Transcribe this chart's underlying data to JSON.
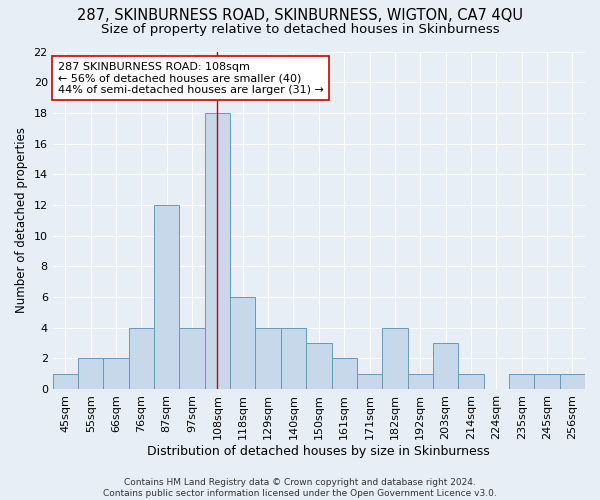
{
  "title1": "287, SKINBURNESS ROAD, SKINBURNESS, WIGTON, CA7 4QU",
  "title2": "Size of property relative to detached houses in Skinburness",
  "xlabel": "Distribution of detached houses by size in Skinburness",
  "ylabel": "Number of detached properties",
  "categories": [
    "45sqm",
    "55sqm",
    "66sqm",
    "76sqm",
    "87sqm",
    "97sqm",
    "108sqm",
    "118sqm",
    "129sqm",
    "140sqm",
    "150sqm",
    "161sqm",
    "171sqm",
    "182sqm",
    "192sqm",
    "203sqm",
    "214sqm",
    "224sqm",
    "235sqm",
    "245sqm",
    "256sqm"
  ],
  "values": [
    1,
    2,
    2,
    4,
    12,
    4,
    18,
    6,
    4,
    4,
    3,
    2,
    1,
    4,
    1,
    3,
    1,
    0,
    1,
    1,
    1
  ],
  "bar_color": "#c8d8eb",
  "bar_edge_color": "#6699bb",
  "bar_linewidth": 0.7,
  "vline_x_index": 6,
  "vline_color": "#cc0000",
  "annotation_line1": "287 SKINBURNESS ROAD: 108sqm",
  "annotation_line2": "← 56% of detached houses are smaller (40)",
  "annotation_line3": "44% of semi-detached houses are larger (31) →",
  "annotation_box_color": "#ffffff",
  "annotation_box_edge": "#cc0000",
  "ylim": [
    0,
    22
  ],
  "yticks": [
    0,
    2,
    4,
    6,
    8,
    10,
    12,
    14,
    16,
    18,
    20,
    22
  ],
  "background_color": "#e8eef6",
  "grid_color": "#ffffff",
  "footer": "Contains HM Land Registry data © Crown copyright and database right 2024.\nContains public sector information licensed under the Open Government Licence v3.0.",
  "title1_fontsize": 10.5,
  "title2_fontsize": 9.5,
  "xlabel_fontsize": 9,
  "ylabel_fontsize": 8.5,
  "tick_fontsize": 8,
  "annotation_fontsize": 8,
  "footer_fontsize": 6.5
}
